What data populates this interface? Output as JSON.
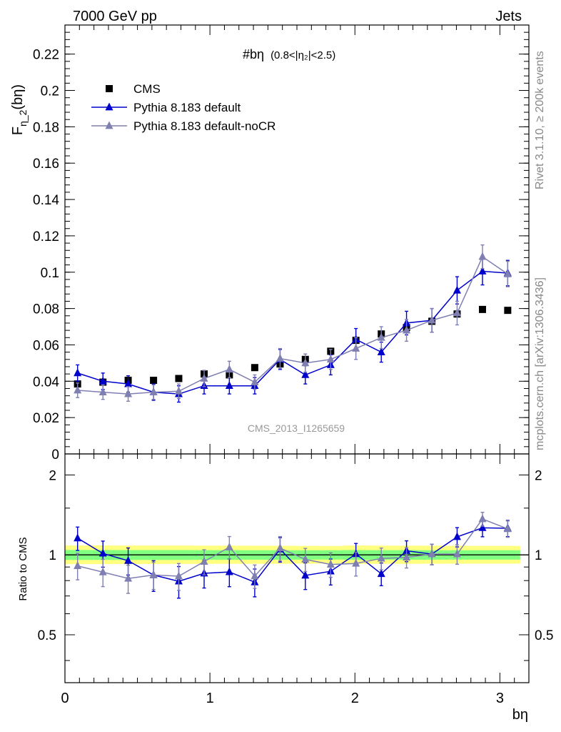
{
  "header": {
    "left": "7000 GeV pp",
    "right": "Jets"
  },
  "side_labels": {
    "rivet": "Rivet 3.1.10, ≥ 200k events",
    "mcplots": "mcplots.cern.ch [arXiv:1306.3436]"
  },
  "watermark": "CMS_2013_I1265659",
  "chart_data": {
    "type": "line",
    "title": "#bη (0.8<|η₂|<2.5)",
    "title_main": "#bη",
    "title_sub": "(0.8<|η₂|<2.5)",
    "ylabel": "F_{η_2}(bη)",
    "ylabel_main": "F",
    "ylabel_sub": "η_2",
    "ylabel_tail": "(bη)",
    "xlabel": "bη",
    "xlim": [
      0,
      3.2
    ],
    "ylim": [
      0,
      0.236
    ],
    "ratio_ylabel": "Ratio to CMS",
    "ratio_ylim_log": [
      0.33,
      2.4
    ],
    "x_ticks": [
      "0",
      "1",
      "2",
      "3"
    ],
    "y_ticks": [
      "0",
      "0.02",
      "0.04",
      "0.06",
      "0.08",
      "0.1",
      "0.12",
      "0.14",
      "0.16",
      "0.18",
      "0.2",
      "0.22"
    ],
    "ratio_ticks": [
      "0.5",
      "1",
      "2"
    ],
    "x": [
      0.087,
      0.262,
      0.436,
      0.611,
      0.785,
      0.96,
      1.134,
      1.309,
      1.484,
      1.658,
      1.833,
      2.007,
      2.182,
      2.356,
      2.531,
      2.705,
      2.88,
      3.054
    ],
    "series": [
      {
        "name": "CMS",
        "color": "#000000",
        "values": [
          0.0385,
          0.0395,
          0.0405,
          0.0405,
          0.0415,
          0.044,
          0.0435,
          0.0475,
          0.0495,
          0.052,
          0.0565,
          0.0625,
          0.066,
          0.0695,
          0.073,
          0.077,
          0.0795,
          0.079
        ],
        "errors": [
          0.001,
          0.001,
          0.001,
          0.001,
          0.001,
          0.001,
          0.001,
          0.001,
          0.001,
          0.001,
          0.001,
          0.0015,
          0.0015,
          0.0015,
          0.0015,
          0.0015,
          0.0015,
          0.0015
        ]
      },
      {
        "name": "Pythia 8.183 default",
        "color": "#0000cc",
        "values": [
          0.0445,
          0.04,
          0.0385,
          0.034,
          0.033,
          0.0375,
          0.0375,
          0.0375,
          0.052,
          0.0435,
          0.049,
          0.063,
          0.056,
          0.072,
          0.0735,
          0.09,
          0.1005,
          0.0995
        ],
        "errors": [
          0.0045,
          0.0045,
          0.0045,
          0.0045,
          0.0045,
          0.0045,
          0.0045,
          0.0045,
          0.0055,
          0.005,
          0.0055,
          0.006,
          0.0055,
          0.0065,
          0.0065,
          0.0075,
          0.0075,
          0.007
        ]
      },
      {
        "name": "Pythia 8.183 default-noCR",
        "color": "#7f7fb2",
        "values": [
          0.035,
          0.034,
          0.033,
          0.034,
          0.0345,
          0.0415,
          0.0465,
          0.0395,
          0.0525,
          0.05,
          0.052,
          0.058,
          0.064,
          0.068,
          0.0735,
          0.0775,
          0.1085,
          0.099
        ],
        "errors": [
          0.004,
          0.004,
          0.004,
          0.004,
          0.004,
          0.0045,
          0.0045,
          0.004,
          0.0055,
          0.005,
          0.0055,
          0.006,
          0.006,
          0.006,
          0.0065,
          0.0065,
          0.0065,
          0.007
        ]
      }
    ],
    "legend": [
      "CMS",
      "Pythia 8.183 default",
      "Pythia 8.183 default-noCR"
    ]
  }
}
